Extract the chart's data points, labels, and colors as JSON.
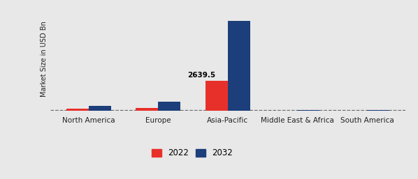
{
  "categories": [
    "North America",
    "Europe",
    "Asia-Pacific",
    "Middle East & Africa",
    "South America"
  ],
  "values_2022": [
    180,
    280,
    2639.5,
    30,
    35
  ],
  "values_2032": [
    450,
    800,
    7800,
    95,
    110
  ],
  "color_2022": "#e8302a",
  "color_2032": "#1c3e7a",
  "annotation_text": "2639.5",
  "annotation_region_index": 2,
  "ylabel": "Market Size in USD Bn",
  "legend_2022": "2022",
  "legend_2032": "2032",
  "background_color": "#e8e8e8",
  "bar_width": 0.32,
  "ylim": [
    0,
    9000
  ],
  "hline_y": 100,
  "hline_color": "#555555",
  "tick_fontsize": 7.5,
  "ylabel_fontsize": 7.0,
  "legend_fontsize": 8.5
}
